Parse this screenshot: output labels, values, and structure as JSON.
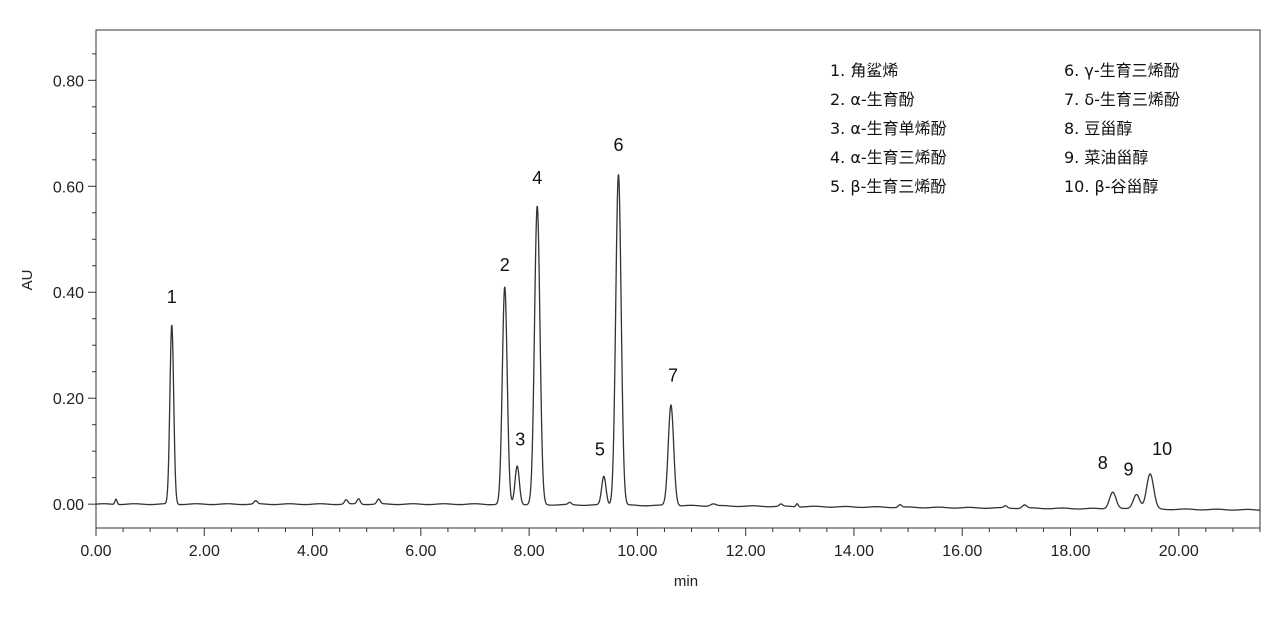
{
  "chart_data": {
    "type": "line",
    "xlabel": "min",
    "ylabel": "AU",
    "xlim": [
      0,
      21.5
    ],
    "ylim": [
      -0.045,
      0.895
    ],
    "x_ticks": [
      "0.00",
      "2.00",
      "4.00",
      "6.00",
      "8.00",
      "10.00",
      "12.00",
      "14.00",
      "16.00",
      "18.00",
      "20.00"
    ],
    "y_ticks": [
      "0.00",
      "0.20",
      "0.40",
      "0.60",
      "0.80"
    ],
    "grid": false,
    "line_color": "#333333",
    "peaks": [
      {
        "label": "1",
        "rt": 1.4,
        "height": 0.338
      },
      {
        "label": "2",
        "rt": 7.55,
        "height": 0.41
      },
      {
        "label": "3",
        "rt": 7.78,
        "height": 0.073
      },
      {
        "label": "4",
        "rt": 8.15,
        "height": 0.563
      },
      {
        "label": "5",
        "rt": 9.38,
        "height": 0.054
      },
      {
        "label": "6",
        "rt": 9.65,
        "height": 0.625
      },
      {
        "label": "7",
        "rt": 10.62,
        "height": 0.19
      },
      {
        "label": "8",
        "rt": 18.78,
        "height": 0.032
      },
      {
        "label": "9",
        "rt": 19.22,
        "height": 0.028
      },
      {
        "label": "10",
        "rt": 19.47,
        "height": 0.066
      }
    ],
    "legend_position": "top-right",
    "legend": [
      "1.  角鲨烯",
      "2.  α-生育酚",
      "3.  α-生育单烯酚",
      "4.  α-生育三烯酚",
      "5.  β-生育三烯酚",
      "6.  γ-生育三烯酚",
      "7.  δ-生育三烯酚",
      "8.  豆甾醇",
      "9.  菜油甾醇",
      "10. β-谷甾醇"
    ]
  }
}
